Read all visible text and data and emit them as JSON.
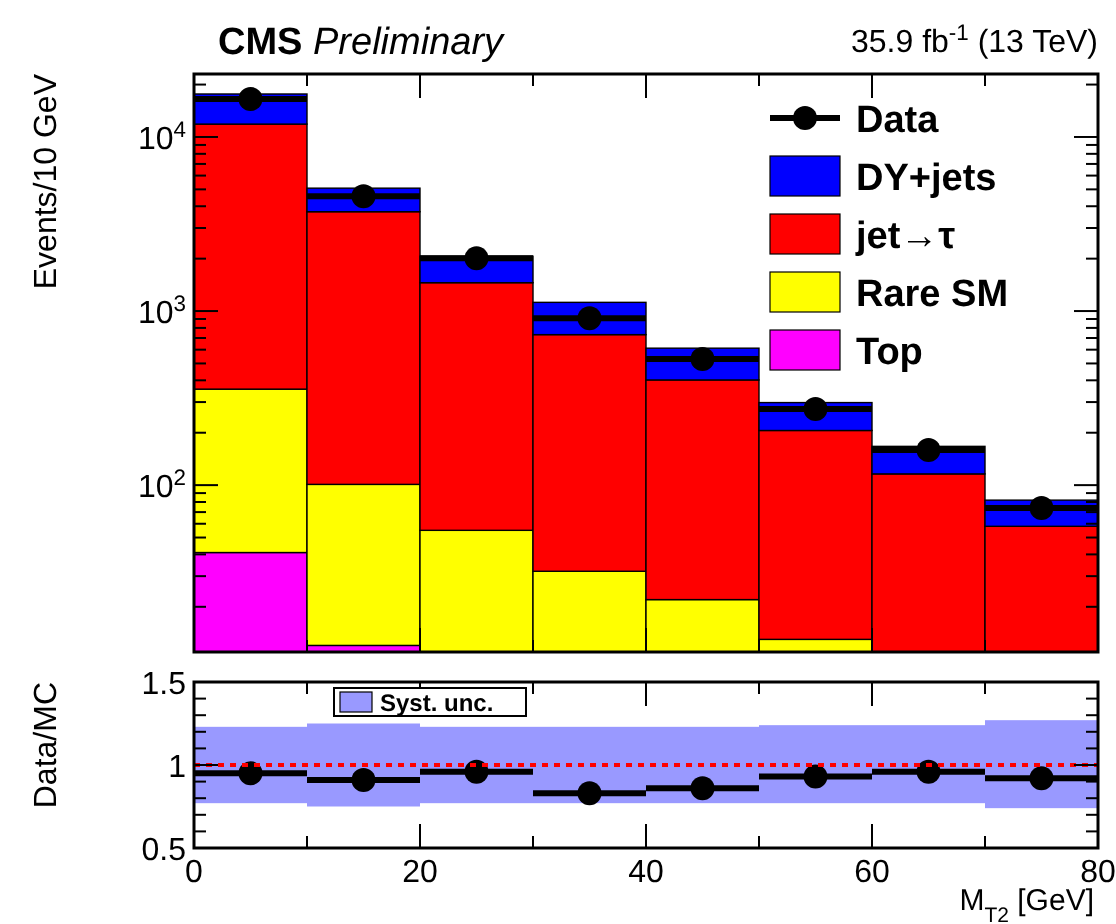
{
  "chart_data": [
    {
      "type": "bar",
      "title": "CMS Preliminary",
      "subtitle": "35.9 fb$^{-1}$ (13 TeV)",
      "ylabel": "Events/10 GeV",
      "stacked": true,
      "log": true,
      "tick_labels": "y",
      "legend": "top right",
      "x": [
        5,
        15,
        25,
        35,
        45,
        55,
        65,
        75
      ],
      "xlim": [
        0,
        80
      ],
      "xticks": [
        0,
        {
          "value": 10,
          "label": null
        },
        20,
        {
          "value": 30,
          "label": null
        },
        40,
        {
          "value": 50,
          "label": null
        },
        60,
        {
          "value": 70,
          "label": null
        },
        80
      ],
      "ylim": [
        11,
        23000
      ],
      "yticks": [
        {
          "value": 20,
          "label": null
        },
        {
          "value": 30,
          "label": null
        },
        {
          "value": 40,
          "label": null
        },
        {
          "value": 50,
          "label": null
        },
        {
          "value": 60,
          "label": null
        },
        {
          "value": 70,
          "label": null
        },
        {
          "value": 80,
          "label": null
        },
        {
          "value": 90,
          "label": null
        },
        {
          "value": 100,
          "label": "10$^{2}$"
        },
        {
          "value": 200,
          "label": null
        },
        {
          "value": 300,
          "label": null
        },
        {
          "value": 400,
          "label": null
        },
        {
          "value": 500,
          "label": null
        },
        {
          "value": 600,
          "label": null
        },
        {
          "value": 700,
          "label": null
        },
        {
          "value": 800,
          "label": null
        },
        {
          "value": 900,
          "label": null
        },
        {
          "value": 1000,
          "label": "10$^{3}$"
        },
        {
          "value": 2000,
          "label": null
        },
        {
          "value": 3000,
          "label": null
        },
        {
          "value": 4000,
          "label": null
        },
        {
          "value": 5000,
          "label": null
        },
        {
          "value": 6000,
          "label": null
        },
        {
          "value": 7000,
          "label": null
        },
        {
          "value": 8000,
          "label": null
        },
        {
          "value": 9000,
          "label": null
        },
        {
          "value": 10000,
          "label": "10$^{4}$"
        },
        {
          "value": 20000,
          "label": null
        }
      ],
      "series": [
        {
          "name": "Top",
          "color": "#ff00ff",
          "values": [
            41,
            12,
            null,
            null,
            null,
            null,
            null,
            null
          ]
        },
        {
          "name": "Rare SM",
          "color": "#ffff00",
          "values": [
            315,
            89,
            55,
            32,
            22,
            13,
            null,
            null
          ]
        },
        {
          "name": "jet→τ",
          "color": "#ff0000",
          "values": [
            11500,
            3620,
            1400,
            700,
            380,
            193,
            116,
            58
          ]
        },
        {
          "name": "DY+jets",
          "color": "#0000ff",
          "values": [
            5800,
            1360,
            610,
            390,
            210,
            92,
            51,
            24
          ]
        },
        {
          "name": "Data",
          "type": "scatter",
          "color": "#000000",
          "marker": "circle",
          "values": [
            16500,
            4570,
            2010,
            910,
            530,
            274,
            159,
            74
          ],
          "xerrors": [
            5,
            5,
            5,
            5,
            5,
            5,
            5,
            5
          ]
        }
      ]
    },
    {
      "type": "scatter",
      "xlabel": "M$_{T2}$ [GeV]",
      "ylabel": "Data/MC",
      "legend": "top left",
      "x": [
        5,
        15,
        25,
        35,
        45,
        55,
        65,
        75
      ],
      "xlim": [
        0,
        80
      ],
      "xticks": [
        0,
        {
          "value": 10,
          "label": null
        },
        20,
        {
          "value": 30,
          "label": null
        },
        40,
        {
          "value": 50,
          "label": null
        },
        60,
        {
          "value": 70,
          "label": null
        },
        80
      ],
      "ylim": [
        0.5,
        1.5
      ],
      "yticks": [
        0.5,
        {
          "value": 0.6,
          "label": null
        },
        {
          "value": 0.7,
          "label": null
        },
        {
          "value": 0.8,
          "label": null
        },
        {
          "value": 0.9,
          "label": null
        },
        1,
        {
          "value": 1.1,
          "label": null
        },
        {
          "value": 1.2,
          "label": null
        },
        {
          "value": 1.3,
          "label": null
        },
        {
          "value": 1.4,
          "label": null
        },
        1.5
      ],
      "ref_lines": [
        {
          "axis": "y",
          "value": 1,
          "color": "#ff0000",
          "line_style": "dotted"
        }
      ],
      "series": [
        {
          "name": "Syst. unc.",
          "type": "bar",
          "color": "#9999ff",
          "base": [
            0.77,
            0.75,
            0.77,
            0.77,
            0.77,
            0.77,
            0.77,
            0.74
          ],
          "values": [
            0.46,
            0.5,
            0.46,
            0.46,
            0.46,
            0.47,
            0.47,
            0.53
          ]
        },
        {
          "color": "#000000",
          "marker": "circle",
          "values": [
            0.95,
            0.91,
            0.96,
            0.83,
            0.86,
            0.93,
            0.96,
            0.92
          ],
          "xerrors": [
            5,
            5,
            5,
            5,
            5,
            5,
            5,
            5
          ],
          "errors": [
            null,
            null,
            null,
            null,
            null,
            null,
            null,
            0.06
          ]
        }
      ]
    }
  ]
}
